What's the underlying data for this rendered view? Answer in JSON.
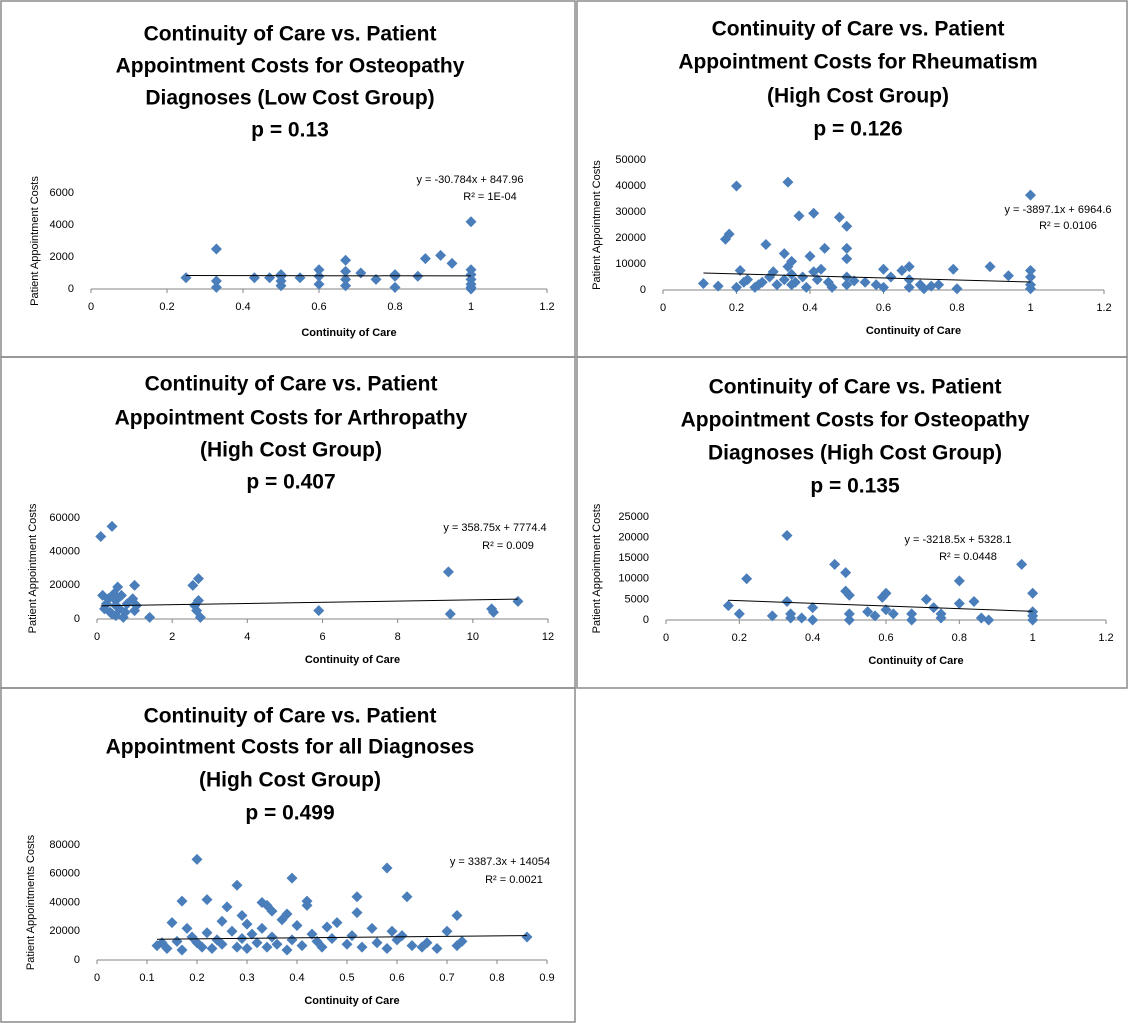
{
  "chart_data": [
    {
      "type": "scatter",
      "title": [
        "Continuity of Care vs. Patient",
        "Appointment Costs for Osteopathy",
        "Diagnoses (Low Cost Group)",
        "p = 0.13"
      ],
      "xlabel": "Continuity of Care",
      "ylabel": "Patient Appointment Costs",
      "xlim": [
        0,
        1.2
      ],
      "xticks": [
        0,
        0.2,
        0.4,
        0.6,
        0.8,
        1,
        1.2
      ],
      "ylim": [
        0,
        6000
      ],
      "yticks": [
        0,
        2000,
        4000,
        6000
      ],
      "series": [
        {
          "color": "#4a7ebb",
          "x": [
            0.25,
            0.33,
            0.33,
            0.33,
            0.43,
            0.47,
            0.5,
            0.5,
            0.5,
            0.5,
            0.55,
            0.6,
            0.6,
            0.6,
            0.67,
            0.67,
            0.67,
            0.67,
            0.71,
            0.75,
            0.8,
            0.8,
            0.8,
            0.86,
            0.88,
            0.92,
            0.95,
            1,
            1,
            1,
            1,
            1,
            1,
            1
          ],
          "y": [
            700,
            2500,
            500,
            100,
            700,
            700,
            800,
            500,
            200,
            900,
            700,
            1200,
            800,
            300,
            1800,
            1100,
            600,
            200,
            1000,
            600,
            800,
            100,
            900,
            800,
            1900,
            2100,
            1600,
            4200,
            1200,
            900,
            600,
            300,
            100,
            0
          ]
        }
      ],
      "trendline": {
        "color": "#000000",
        "x": [
          0.25,
          1
        ],
        "y": [
          840,
          817
        ]
      },
      "annotations": [
        "y = -30.784x + 847.96",
        "R² = 1E-04"
      ]
    },
    {
      "type": "scatter",
      "title": [
        "Continuity of Care vs. Patient",
        "Appointment Costs for Rheumatism",
        "(High Cost Group)",
        "p = 0.126"
      ],
      "xlabel": "Continuity of Care",
      "ylabel": "Patient Appointment Costs",
      "xlim": [
        0,
        1.2
      ],
      "xticks": [
        0,
        0.2,
        0.4,
        0.6,
        0.8,
        1,
        1.2
      ],
      "ylim": [
        0,
        50000
      ],
      "yticks": [
        0,
        10000,
        20000,
        30000,
        40000,
        50000
      ],
      "series": [
        {
          "color": "#4a7ebb",
          "x": [
            0.11,
            0.15,
            0.17,
            0.18,
            0.2,
            0.2,
            0.21,
            0.22,
            0.23,
            0.25,
            0.26,
            0.27,
            0.28,
            0.29,
            0.3,
            0.31,
            0.33,
            0.33,
            0.34,
            0.34,
            0.35,
            0.35,
            0.35,
            0.36,
            0.37,
            0.38,
            0.39,
            0.4,
            0.41,
            0.41,
            0.42,
            0.43,
            0.44,
            0.45,
            0.46,
            0.48,
            0.5,
            0.5,
            0.5,
            0.5,
            0.5,
            0.52,
            0.55,
            0.58,
            0.6,
            0.6,
            0.62,
            0.65,
            0.67,
            0.67,
            0.67,
            0.7,
            0.71,
            0.73,
            0.75,
            0.79,
            0.8,
            0.89,
            0.94,
            1,
            1,
            1,
            1,
            1
          ],
          "y": [
            2500,
            1500,
            19500,
            21500,
            1000,
            40000,
            7500,
            3000,
            4000,
            1000,
            2000,
            3000,
            17500,
            5000,
            7000,
            2000,
            14000,
            4000,
            41500,
            9000,
            11000,
            6000,
            2000,
            3000,
            28500,
            5000,
            1000,
            13000,
            29500,
            7000,
            4000,
            8000,
            16000,
            3000,
            1000,
            28000,
            24500,
            16000,
            12000,
            5000,
            2000,
            3500,
            3000,
            2000,
            8000,
            1000,
            5000,
            7500,
            9000,
            4000,
            1000,
            2000,
            500,
            1500,
            2000,
            8000,
            500,
            9000,
            5500,
            36500,
            7500,
            5000,
            2000,
            500
          ]
        }
      ],
      "trendline": {
        "color": "#000000",
        "x": [
          0.11,
          1
        ],
        "y": [
          6530,
          3067
        ]
      },
      "annotations": [
        "y = -3897.1x + 6964.6",
        "R² = 0.0106"
      ]
    },
    {
      "type": "scatter",
      "title": [
        "Continuity of Care vs. Patient",
        "Appointment Costs for Arthropathy",
        "(High Cost Group)",
        "p = 0.407"
      ],
      "xlabel": "Continuity of Care",
      "ylabel": "Patient Appointment Costs",
      "xlim": [
        0,
        12
      ],
      "xticks": [
        0,
        2,
        4,
        6,
        8,
        10,
        12
      ],
      "ylim": [
        0,
        60000
      ],
      "yticks": [
        0,
        20000,
        40000,
        60000
      ],
      "series": [
        {
          "color": "#4a7ebb",
          "x": [
            0.1,
            0.15,
            0.2,
            0.25,
            0.3,
            0.35,
            0.4,
            0.4,
            0.45,
            0.5,
            0.5,
            0.5,
            0.55,
            0.6,
            0.65,
            0.7,
            0.75,
            0.8,
            0.95,
            1,
            1,
            1.05,
            1.4,
            2.55,
            2.6,
            2.65,
            2.7,
            2.7,
            2.75,
            5.9,
            9.35,
            9.4,
            10.5,
            10.55,
            11.2
          ],
          "y": [
            49000,
            14000,
            6000,
            9000,
            12000,
            4000,
            3000,
            55000,
            15000,
            11000,
            8000,
            2000,
            19000,
            6000,
            14000,
            1000,
            4000,
            9000,
            12000,
            5000,
            20000,
            8000,
            1000,
            20000,
            8000,
            5000,
            24000,
            11000,
            1000,
            5000,
            28000,
            3000,
            6000,
            4000,
            10500
          ]
        }
      ],
      "trendline": {
        "color": "#000000",
        "x": [
          0.1,
          11.2
        ],
        "y": [
          7810,
          11792
        ]
      },
      "annotations": [
        "y = 358.75x + 7774.4",
        "R² = 0.009"
      ]
    },
    {
      "type": "scatter",
      "title": [
        "Continuity of Care vs. Patient",
        "Appointment Costs for Osteopathy",
        "Diagnoses (High Cost Group)",
        "p = 0.135"
      ],
      "xlabel": "Continuity of Care",
      "ylabel": "Patient Appointment Costs",
      "xlim": [
        0,
        1.2
      ],
      "xticks": [
        0,
        0.2,
        0.4,
        0.6,
        0.8,
        1,
        1.2
      ],
      "ylim": [
        0,
        25000
      ],
      "yticks": [
        0,
        5000,
        10000,
        15000,
        20000,
        25000
      ],
      "series": [
        {
          "color": "#4a7ebb",
          "x": [
            0.17,
            0.2,
            0.22,
            0.29,
            0.33,
            0.33,
            0.34,
            0.34,
            0.37,
            0.4,
            0.4,
            0.46,
            0.49,
            0.49,
            0.5,
            0.5,
            0.5,
            0.55,
            0.57,
            0.59,
            0.6,
            0.6,
            0.62,
            0.67,
            0.67,
            0.71,
            0.73,
            0.75,
            0.75,
            0.8,
            0.8,
            0.84,
            0.86,
            0.88,
            0.97,
            1,
            1,
            1,
            1
          ],
          "y": [
            3500,
            1500,
            10000,
            1000,
            20500,
            4500,
            1500,
            500,
            500,
            3000,
            0,
            13500,
            11500,
            7000,
            6000,
            1500,
            0,
            2000,
            1000,
            5500,
            6500,
            2500,
            1500,
            1500,
            0,
            5000,
            3000,
            1500,
            500,
            9500,
            4000,
            4500,
            500,
            0,
            13500,
            6500,
            2000,
            1000,
            0
          ]
        }
      ],
      "trendline": {
        "color": "#000000",
        "x": [
          0.17,
          1
        ],
        "y": [
          4781,
          2110
        ]
      },
      "annotations": [
        "y = -3218.5x + 5328.1",
        "R² = 0.0448"
      ]
    },
    {
      "type": "scatter",
      "title": [
        "Continuity of Care vs. Patient",
        "Appointment Costs for all Diagnoses",
        "(High Cost Group)",
        "p = 0.499"
      ],
      "xlabel": "Continuity of Care",
      "ylabel": "Patient Appointments Costs",
      "xlim": [
        0,
        0.9
      ],
      "xticks": [
        0,
        0.1,
        0.2,
        0.3,
        0.4,
        0.5,
        0.6,
        0.7,
        0.8,
        0.9
      ],
      "ylim": [
        0,
        80000
      ],
      "yticks": [
        0,
        20000,
        40000,
        60000,
        80000
      ],
      "series": [
        {
          "color": "#4a7ebb",
          "x": [
            0.12,
            0.13,
            0.14,
            0.15,
            0.16,
            0.17,
            0.17,
            0.18,
            0.19,
            0.2,
            0.2,
            0.21,
            0.22,
            0.22,
            0.23,
            0.24,
            0.25,
            0.25,
            0.26,
            0.27,
            0.28,
            0.28,
            0.29,
            0.29,
            0.3,
            0.3,
            0.31,
            0.32,
            0.33,
            0.33,
            0.34,
            0.34,
            0.35,
            0.35,
            0.36,
            0.37,
            0.38,
            0.38,
            0.39,
            0.39,
            0.4,
            0.41,
            0.42,
            0.42,
            0.43,
            0.44,
            0.45,
            0.46,
            0.47,
            0.48,
            0.5,
            0.51,
            0.52,
            0.52,
            0.53,
            0.55,
            0.56,
            0.58,
            0.58,
            0.59,
            0.6,
            0.61,
            0.62,
            0.63,
            0.65,
            0.66,
            0.68,
            0.7,
            0.72,
            0.72,
            0.73,
            0.86
          ],
          "y": [
            10000,
            12000,
            8000,
            26000,
            13000,
            41000,
            7000,
            22000,
            16000,
            70000,
            12000,
            9000,
            42000,
            19000,
            8000,
            14000,
            27000,
            11000,
            37000,
            20000,
            52000,
            9000,
            31000,
            15000,
            25000,
            8000,
            18000,
            12000,
            40000,
            22000,
            38000,
            9000,
            34000,
            16000,
            11000,
            28000,
            32000,
            7000,
            57000,
            14000,
            24000,
            10000,
            41000,
            38000,
            18000,
            13000,
            9000,
            23000,
            15000,
            26000,
            11000,
            17000,
            44000,
            33000,
            9000,
            22000,
            12000,
            64000,
            8000,
            20000,
            14000,
            17000,
            44000,
            10000,
            9000,
            12000,
            8000,
            20000,
            31000,
            10000,
            13000,
            16000
          ]
        }
      ],
      "trendline": {
        "color": "#000000",
        "x": [
          0.12,
          0.86
        ],
        "y": [
          14460,
          16967
        ]
      },
      "annotations": [
        "y = 3387.3x + 14054",
        "R² = 0.0021"
      ]
    }
  ]
}
